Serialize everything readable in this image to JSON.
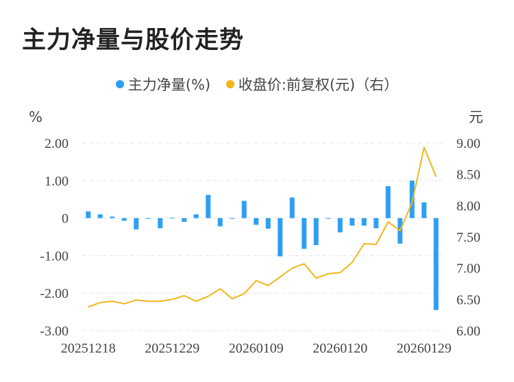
{
  "title": "主力净量与股价走势",
  "legend": [
    {
      "label": "主力净量(%)",
      "color": "#2e9ff2"
    },
    {
      "label": "收盘价:前复权(元)（右）",
      "color": "#f2b51a"
    }
  ],
  "chart_data": {
    "type": "bar",
    "left_axis_unit": "%",
    "right_axis_unit": "元",
    "left_ylim": [
      -3,
      2
    ],
    "left_ticks": [
      "2.00",
      "1.00",
      "0",
      "-1.00",
      "-2.00",
      "-3.00"
    ],
    "right_ylim": [
      6,
      9
    ],
    "right_ticks": [
      "9.00",
      "8.50",
      "8.00",
      "7.50",
      "7.00",
      "6.50",
      "6.00"
    ],
    "x_tick_labels": [
      "20251218",
      "20251229",
      "20260109",
      "20260120",
      "20260129"
    ],
    "x_tick_indices": [
      0,
      7,
      14,
      21,
      28
    ],
    "grid": true,
    "series": [
      {
        "name": "主力净量(%)",
        "type": "bar",
        "axis": "left",
        "values": [
          0.18,
          0.1,
          0.04,
          -0.07,
          -0.3,
          -0.02,
          -0.27,
          0.01,
          -0.1,
          0.1,
          0.62,
          -0.22,
          -0.02,
          0.46,
          -0.18,
          -0.28,
          -1.02,
          0.55,
          -0.82,
          -0.72,
          -0.02,
          -0.38,
          -0.2,
          -0.2,
          -0.27,
          0.85,
          -0.68,
          1.0,
          0.42,
          -2.45
        ]
      },
      {
        "name": "收盘价:前复权(元)（右）",
        "type": "line",
        "axis": "right",
        "values": [
          6.38,
          6.45,
          6.47,
          6.43,
          6.49,
          6.47,
          6.47,
          6.5,
          6.56,
          6.47,
          6.55,
          6.67,
          6.51,
          6.59,
          6.8,
          6.72,
          6.86,
          7.0,
          7.07,
          6.84,
          6.91,
          6.93,
          7.09,
          7.39,
          7.38,
          7.74,
          7.6,
          8.05,
          8.93,
          8.46
        ]
      }
    ]
  }
}
